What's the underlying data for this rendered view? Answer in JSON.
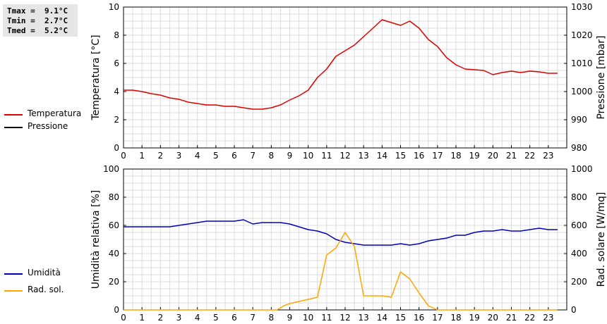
{
  "stats": {
    "tmax": "Tmax =  9.1°C",
    "tmin": "Tmin =  2.7°C",
    "tmed": "Tmed =  5.2°C"
  },
  "legend_top": [
    {
      "label": "Temperatura",
      "color": "#dd0000"
    },
    {
      "label": "Pressione",
      "color": "#000000"
    }
  ],
  "legend_bottom": [
    {
      "label": "Umidità",
      "color": "#0000bb"
    },
    {
      "label": "Rad. sol.",
      "color": "#ffa500"
    }
  ],
  "chart_data": [
    {
      "type": "line",
      "ylabel": "Temperatura [°C]",
      "ylabel_right": "Pressione [mbar]",
      "xlim": [
        0,
        24
      ],
      "ylim": [
        0,
        10
      ],
      "ylim_right": [
        980,
        1030
      ],
      "x_ticks": [
        0,
        1,
        2,
        3,
        4,
        5,
        6,
        7,
        8,
        9,
        10,
        11,
        12,
        13,
        14,
        15,
        16,
        17,
        18,
        19,
        20,
        21,
        22,
        23
      ],
      "y_ticks": [
        0,
        2,
        4,
        6,
        8,
        10
      ],
      "y_ticks_right": [
        980,
        990,
        1000,
        1010,
        1020,
        1030
      ],
      "grid": true,
      "series": [
        {
          "name": "Temperatura",
          "color": "#dd0000",
          "axis": "left",
          "x": [
            0,
            0.5,
            1,
            1.5,
            2,
            2.5,
            3,
            3.5,
            4,
            4.5,
            5,
            5.5,
            6,
            6.5,
            7,
            7.5,
            8,
            8.5,
            9,
            9.5,
            10,
            10.5,
            11,
            11.5,
            12,
            12.5,
            13,
            13.5,
            14,
            14.5,
            15,
            15.5,
            16,
            16.5,
            17,
            17.5,
            18,
            18.5,
            19,
            19.5,
            20,
            20.5,
            21,
            21.5,
            22,
            22.5,
            23,
            23.5
          ],
          "y": [
            4.1,
            4.1,
            4.0,
            3.85,
            3.75,
            3.55,
            3.45,
            3.25,
            3.15,
            3.05,
            3.05,
            2.95,
            2.95,
            2.85,
            2.75,
            2.75,
            2.85,
            3.05,
            3.4,
            3.7,
            4.1,
            5.0,
            5.6,
            6.5,
            6.9,
            7.3,
            7.9,
            8.5,
            9.1,
            8.9,
            8.7,
            9.0,
            8.5,
            7.7,
            7.2,
            6.4,
            5.9,
            5.6,
            5.55,
            5.5,
            5.2,
            5.35,
            5.45,
            5.35,
            5.45,
            5.4,
            5.3,
            5.3
          ]
        },
        {
          "name": "Pressione",
          "color": "#000000",
          "axis": "right",
          "x": [],
          "y": []
        }
      ]
    },
    {
      "type": "line",
      "ylabel": "Umidità relativa [%]",
      "ylabel_right": "Rad. solare [W/mq]",
      "xlim": [
        0,
        24
      ],
      "ylim": [
        0,
        100
      ],
      "ylim_right": [
        0,
        1000
      ],
      "x_ticks": [
        0,
        1,
        2,
        3,
        4,
        5,
        6,
        7,
        8,
        9,
        10,
        11,
        12,
        13,
        14,
        15,
        16,
        17,
        18,
        19,
        20,
        21,
        22,
        23
      ],
      "y_ticks": [
        0,
        20,
        40,
        60,
        80,
        100
      ],
      "y_ticks_right": [
        0,
        200,
        400,
        600,
        800,
        1000
      ],
      "grid": true,
      "series": [
        {
          "name": "Umidità",
          "color": "#0000bb",
          "axis": "left",
          "x": [
            0,
            0.5,
            1,
            1.5,
            2,
            2.5,
            3,
            3.5,
            4,
            4.5,
            5,
            5.5,
            6,
            6.5,
            7,
            7.5,
            8,
            8.5,
            9,
            9.5,
            10,
            10.5,
            11,
            11.5,
            12,
            12.5,
            13,
            13.5,
            14,
            14.5,
            15,
            15.5,
            16,
            16.5,
            17,
            17.5,
            18,
            18.5,
            19,
            19.5,
            20,
            20.5,
            21,
            21.5,
            22,
            22.5,
            23,
            23.5
          ],
          "y": [
            59,
            59,
            59,
            59,
            59,
            59,
            60,
            61,
            62,
            63,
            63,
            63,
            63,
            64,
            61,
            62,
            62,
            62,
            61,
            59,
            57,
            56,
            54,
            50,
            48,
            47,
            46,
            46,
            46,
            46,
            47,
            46,
            47,
            49,
            50,
            51,
            53,
            53,
            55,
            56,
            56,
            57,
            56,
            56,
            57,
            58,
            57,
            57
          ]
        },
        {
          "name": "Rad. sol.",
          "color": "#ffa500",
          "axis": "right",
          "x": [
            0,
            0.5,
            1,
            1.5,
            2,
            2.5,
            3,
            3.5,
            4,
            4.5,
            5,
            5.5,
            6,
            6.5,
            7,
            7.5,
            8,
            8.3,
            8.7,
            9,
            9.5,
            10,
            10.5,
            11,
            11.5,
            12,
            12.5,
            13,
            13.5,
            14,
            14.5,
            15,
            15.5,
            16,
            16.5,
            17,
            17.5,
            18,
            18.5,
            19,
            19.5,
            20,
            20.5,
            21,
            21.5,
            22,
            22.5,
            23,
            23.5
          ],
          "y": [
            0,
            0,
            0,
            0,
            0,
            0,
            0,
            0,
            0,
            0,
            0,
            0,
            0,
            0,
            0,
            0,
            0,
            0,
            30,
            45,
            60,
            75,
            90,
            390,
            440,
            550,
            450,
            100,
            100,
            100,
            90,
            270,
            220,
            120,
            30,
            0,
            0,
            0,
            0,
            0,
            0,
            0,
            0,
            0,
            0,
            0,
            0,
            0,
            0
          ]
        }
      ]
    }
  ]
}
